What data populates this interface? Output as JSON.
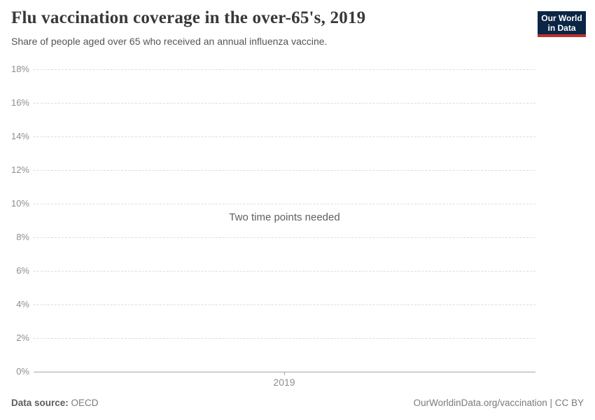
{
  "header": {
    "title": "Flu vaccination coverage in the over-65's, 2019",
    "subtitle": "Share of people aged over 65 who received an annual influenza vaccine.",
    "logo_line1": "Our World",
    "logo_line2": "in Data"
  },
  "chart_data": {
    "type": "line",
    "title": "Flu vaccination coverage in the over-65's, 2019",
    "subtitle": "Share of people aged over 65 who received an annual influenza vaccine.",
    "series": [],
    "empty_message": "Two time points needed",
    "x_ticks": [
      "2019"
    ],
    "y_ticks": [
      "0%",
      "2%",
      "4%",
      "6%",
      "8%",
      "10%",
      "12%",
      "14%",
      "16%",
      "18%"
    ],
    "ylim": [
      0,
      18
    ],
    "grid": "horizontal-dashed",
    "legend": "none"
  },
  "footer": {
    "datasource_label": "Data source:",
    "datasource_value": "OECD",
    "attribution": "OurWorldinData.org/vaccination | CC BY"
  },
  "colors": {
    "logo_bg": "#0b2545",
    "logo_red": "#c0302d",
    "title_color": "#383838",
    "subtitle_color": "#555555",
    "tick_color": "#8f8f8f",
    "grid_color": "#dcdcdc",
    "axis_color": "#a5a5a5",
    "message_color": "#5f5f5f",
    "footer_color": "#7b7b7b",
    "footer_bold_color": "#5d5d5d"
  }
}
